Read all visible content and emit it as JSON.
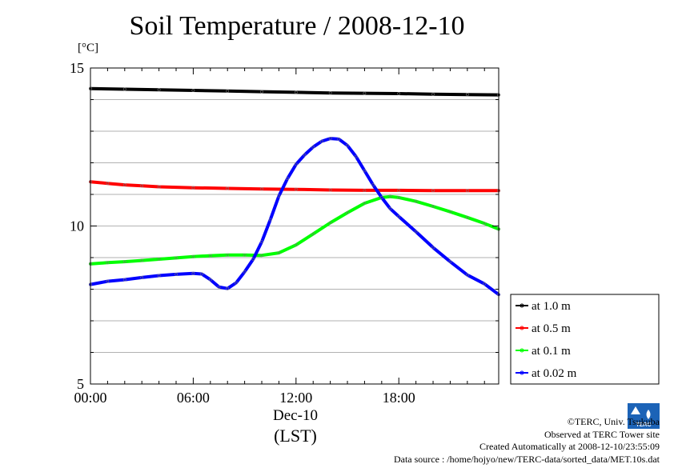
{
  "page": {
    "title": "Soil Temperature / 2008-12-10",
    "unit_label": "[°C]",
    "date_label": "Dec-10",
    "timezone_label": "(LST)"
  },
  "credits": {
    "copyright": "©TERC, Univ. Tsukuba",
    "observed": "Observed at TERC Tower site",
    "created": "Created Automatically at 2008-12-10/23:55:09",
    "source": "Data source : /home/hojyo/new/TERC-data/sorted_data/MET.10s.dat"
  },
  "logo_text": "TERC",
  "chart_data": {
    "type": "line",
    "title": "Soil Temperature / 2008-12-10",
    "ylabel": "[°C]",
    "xlabel": "(LST)",
    "xlim": [
      0,
      23.83
    ],
    "ylim": [
      5,
      15
    ],
    "xticks": [
      0,
      6,
      12,
      18
    ],
    "xtick_labels": [
      "00:00",
      "06:00",
      "12:00",
      "18:00"
    ],
    "yticks": [
      5,
      10,
      15
    ],
    "ytick_labels": [
      "5",
      "10",
      "15"
    ],
    "grid": "horizontal",
    "legend_position": "right-bottom",
    "series": [
      {
        "name": "at 1.0 m",
        "color": "#000000",
        "x": [
          0,
          2,
          4,
          6,
          8,
          10,
          12,
          14,
          16,
          18,
          20,
          22,
          23.83
        ],
        "y": [
          14.35,
          14.33,
          14.31,
          14.29,
          14.27,
          14.25,
          14.23,
          14.21,
          14.2,
          14.19,
          14.17,
          14.16,
          14.15
        ]
      },
      {
        "name": "at 0.5 m",
        "color": "#ff0000",
        "x": [
          0,
          1,
          2,
          3,
          4,
          6,
          8,
          10,
          12,
          14,
          16,
          18,
          20,
          22,
          23.83
        ],
        "y": [
          11.4,
          11.35,
          11.3,
          11.27,
          11.24,
          11.21,
          11.19,
          11.17,
          11.16,
          11.14,
          11.13,
          11.13,
          11.12,
          11.12,
          11.12
        ]
      },
      {
        "name": "at 0.1 m",
        "color": "#00ff00",
        "x": [
          0,
          1,
          2,
          3,
          4,
          5,
          6,
          7,
          8,
          9,
          10,
          11,
          12,
          13,
          14,
          15,
          16,
          17,
          17.5,
          18,
          19,
          20,
          21,
          22,
          23,
          23.83
        ],
        "y": [
          8.8,
          8.84,
          8.87,
          8.91,
          8.95,
          8.99,
          9.03,
          9.06,
          9.08,
          9.08,
          9.07,
          9.15,
          9.4,
          9.75,
          10.1,
          10.42,
          10.72,
          10.9,
          10.93,
          10.9,
          10.78,
          10.62,
          10.45,
          10.27,
          10.08,
          9.9
        ]
      },
      {
        "name": "at 0.02 m",
        "color": "#0000ff",
        "x": [
          0,
          1,
          2,
          3,
          4,
          5,
          6,
          6.5,
          7,
          7.5,
          8,
          8.5,
          9,
          9.5,
          10,
          10.5,
          11,
          11.5,
          12,
          12.5,
          13,
          13.5,
          14,
          14.5,
          15,
          15.5,
          16,
          16.5,
          17,
          17.5,
          18,
          19,
          20,
          21,
          22,
          23,
          23.83
        ],
        "y": [
          8.15,
          8.25,
          8.3,
          8.37,
          8.43,
          8.47,
          8.5,
          8.48,
          8.3,
          8.07,
          8.02,
          8.2,
          8.55,
          8.95,
          9.5,
          10.2,
          10.95,
          11.5,
          11.95,
          12.25,
          12.5,
          12.68,
          12.77,
          12.75,
          12.55,
          12.2,
          11.75,
          11.3,
          10.9,
          10.55,
          10.3,
          9.82,
          9.32,
          8.87,
          8.45,
          8.17,
          7.83
        ]
      }
    ]
  }
}
